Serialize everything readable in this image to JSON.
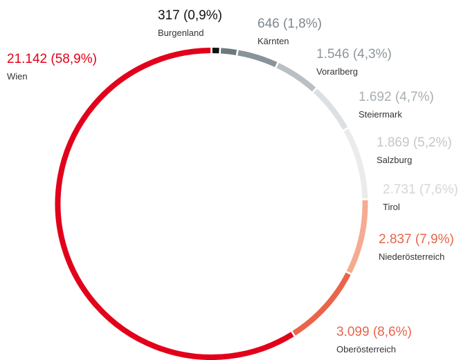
{
  "chart_data": {
    "type": "donut",
    "categories": [
      "Burgenland",
      "Kärnten",
      "Vorarlberg",
      "Steiermark",
      "Salzburg",
      "Tirol",
      "Niederösterreich",
      "Oberösterreich",
      "Wien"
    ],
    "values": [
      317,
      646,
      1546,
      1692,
      1869,
      2731,
      2837,
      3099,
      21142
    ],
    "value_labels": [
      "317 (0,9%)",
      "646 (1,8%)",
      "1.546 (4,3%)",
      "1.692 (4,7%)",
      "1.869 (5,2%)",
      "2.731 (7,6%)",
      "2.837 (7,9%)",
      "3.099 (8,6%)",
      "21.142 (58,9%)"
    ],
    "colors": [
      "#111111",
      "#6e787f",
      "#89939a",
      "#b9c0c4",
      "#dde0e2",
      "#ebebeb",
      "#f5ab92",
      "#ea644b",
      "#e2001a"
    ],
    "label_colors": [
      "#111111",
      "#7f888e",
      "#8e979d",
      "#a7aeb3",
      "#c2c7ca",
      "#d3d6d8",
      "#e8644a",
      "#e8644a",
      "#e2001a"
    ]
  }
}
